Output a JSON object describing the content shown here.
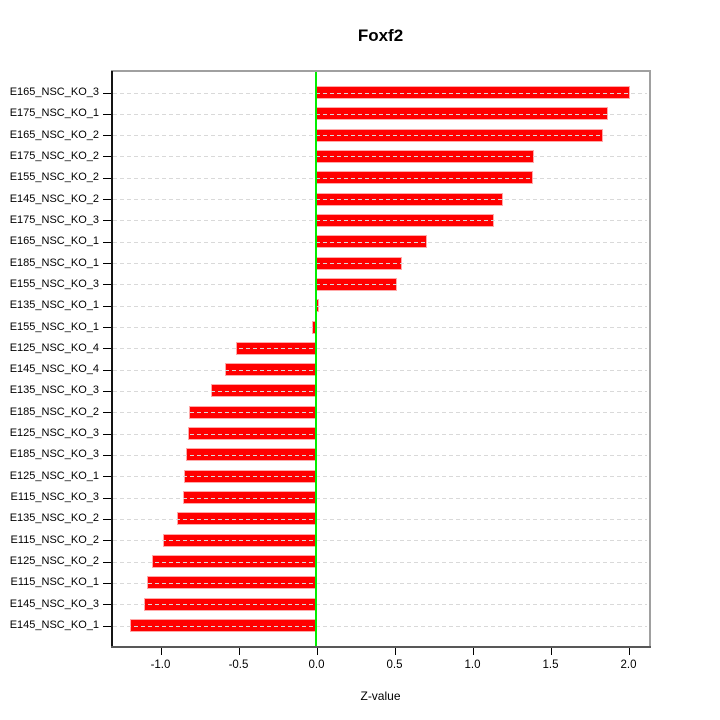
{
  "chart_data": {
    "type": "bar",
    "orientation": "horizontal",
    "title": "Foxf2",
    "xlabel": "Z-value",
    "categories": [
      "E165_NSC_KO_3",
      "E175_NSC_KO_1",
      "E165_NSC_KO_2",
      "E175_NSC_KO_2",
      "E155_NSC_KO_2",
      "E145_NSC_KO_2",
      "E175_NSC_KO_3",
      "E165_NSC_KO_1",
      "E185_NSC_KO_1",
      "E155_NSC_KO_3",
      "E135_NSC_KO_1",
      "E155_NSC_KO_1",
      "E125_NSC_KO_4",
      "E145_NSC_KO_4",
      "E135_NSC_KO_3",
      "E185_NSC_KO_2",
      "E125_NSC_KO_3",
      "E185_NSC_KO_3",
      "E125_NSC_KO_1",
      "E115_NSC_KO_3",
      "E135_NSC_KO_2",
      "E115_NSC_KO_2",
      "E125_NSC_KO_2",
      "E115_NSC_KO_1",
      "E145_NSC_KO_3",
      "E145_NSC_KO_1"
    ],
    "values": [
      2.0,
      1.86,
      1.83,
      1.39,
      1.38,
      1.19,
      1.13,
      0.7,
      0.54,
      0.51,
      0.01,
      -0.02,
      -0.51,
      -0.58,
      -0.67,
      -0.81,
      -0.82,
      -0.83,
      -0.84,
      -0.85,
      -0.89,
      -0.98,
      -1.05,
      -1.08,
      -1.1,
      -1.19
    ],
    "x_tick_labels": [
      "-1.0",
      "-0.5",
      "0.0",
      "0.5",
      "1.0",
      "1.5",
      "2.0"
    ],
    "x_tick_values": [
      -1.0,
      -0.5,
      0.0,
      0.5,
      1.0,
      1.5,
      2.0
    ],
    "xlim": [
      -1.31,
      2.13
    ],
    "grid": "dashed horizontal line per category, drawn over bars",
    "legend": "none",
    "colors": {
      "bar_fill": "#ff0000",
      "bar_border": "#ffa8a8",
      "zero_line": "#00ee00",
      "gridline": "#d9d9d9",
      "frame_top_right": "#a0a0a0",
      "frame_bottom": "#585858",
      "axis_left": "#141414"
    }
  }
}
